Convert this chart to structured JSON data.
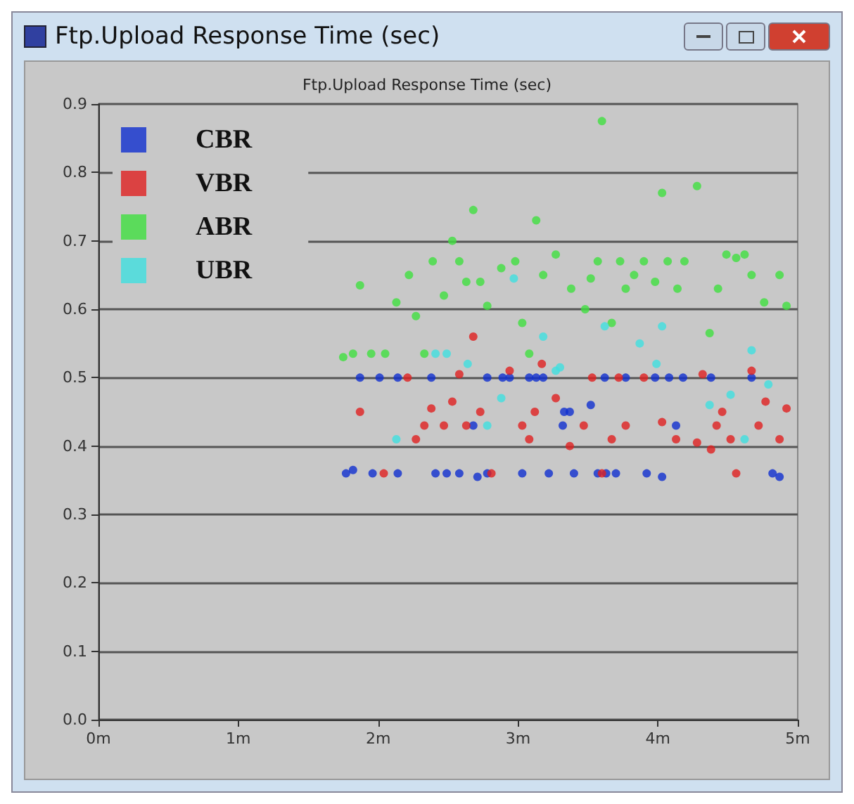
{
  "chart_data": {
    "type": "scatter",
    "title": "Ftp.Upload Response Time (sec)",
    "annotations": [
      "Ftp.Upload Response Time (sec)"
    ],
    "xlim": [
      0,
      5
    ],
    "xticks": [
      {
        "value": 0,
        "label": "0m"
      },
      {
        "value": 1,
        "label": "1m"
      },
      {
        "value": 2,
        "label": "2m"
      },
      {
        "value": 3,
        "label": "3m"
      },
      {
        "value": 4,
        "label": "4m"
      },
      {
        "value": 5,
        "label": "5m"
      }
    ],
    "ylim": [
      0,
      0.9
    ],
    "yticks": [
      {
        "value": 0,
        "label": "0.0"
      },
      0.1,
      0.2,
      0.3,
      0.4,
      0.5,
      0.6,
      0.7,
      0.8,
      0.9
    ],
    "grid": "y",
    "legend": "top left",
    "marker": "circle",
    "series": [
      {
        "name": "CBR",
        "color": "#1030d0",
        "x": [
          1.77,
          1.82,
          1.96,
          2.03,
          2.14,
          2.41,
          2.49,
          2.58,
          2.71,
          2.78,
          3.03,
          3.22,
          3.4,
          3.57,
          3.63,
          3.7,
          3.92,
          4.03,
          4.82,
          4.87,
          1.87,
          2.01,
          2.14,
          2.38,
          2.78,
          2.89,
          2.94,
          3.08,
          3.13,
          3.18,
          3.62,
          3.77,
          3.88,
          3.98,
          4.08,
          4.18,
          4.38,
          4.67,
          3.33,
          3.32,
          2.68,
          3.52,
          3.37,
          4.13
        ],
        "values": [
          0.36,
          0.365,
          0.36,
          null,
          0.36,
          0.36,
          0.36,
          0.36,
          0.355,
          0.36,
          0.36,
          0.36,
          0.36,
          0.36,
          0.36,
          0.36,
          0.36,
          0.355,
          0.36,
          0.355,
          0.5,
          0.5,
          0.5,
          0.5,
          0.5,
          0.5,
          0.5,
          0.5,
          0.5,
          0.5,
          0.5,
          0.5,
          null,
          0.5,
          0.5,
          0.5,
          0.5,
          0.5,
          0.45,
          0.43,
          0.43,
          0.46,
          0.45,
          0.43
        ]
      },
      {
        "name": "VBR",
        "color": "#e02020",
        "x": [
          1.87,
          2.21,
          2.38,
          2.53,
          2.33,
          2.47,
          2.27,
          2.68,
          2.58,
          2.73,
          2.63,
          2.94,
          3.17,
          3.27,
          3.12,
          3.03,
          3.08,
          3.37,
          2.04,
          2.81,
          3.53,
          3.72,
          3.9,
          4.32,
          4.67,
          3.77,
          4.03,
          3.47,
          3.67,
          4.13,
          4.28,
          4.38,
          4.52,
          4.62,
          4.87,
          4.42,
          4.46,
          4.72,
          4.77,
          4.92,
          4.56,
          3.6
        ],
        "values": [
          0.45,
          0.5,
          0.455,
          0.465,
          0.43,
          0.43,
          0.41,
          0.56,
          0.505,
          0.45,
          0.43,
          0.51,
          0.52,
          0.47,
          0.45,
          0.43,
          0.41,
          0.4,
          0.36,
          0.36,
          0.5,
          0.5,
          0.5,
          0.505,
          0.51,
          0.43,
          0.435,
          0.43,
          0.41,
          0.41,
          0.405,
          0.395,
          0.41,
          null,
          0.41,
          0.43,
          0.45,
          0.43,
          0.465,
          0.455,
          0.36,
          0.36
        ]
      },
      {
        "name": "ABR",
        "color": "#40e040",
        "x": [
          1.75,
          1.82,
          1.95,
          2.05,
          2.33,
          1.87,
          2.13,
          2.22,
          2.27,
          2.39,
          2.47,
          2.53,
          2.58,
          2.63,
          2.73,
          2.68,
          2.78,
          2.88,
          2.98,
          3.13,
          3.27,
          3.18,
          3.03,
          3.08,
          3.37,
          3.6,
          4.03,
          4.28,
          3.38,
          3.48,
          3.52,
          3.57,
          3.73,
          3.77,
          3.83,
          3.9,
          3.98,
          4.07,
          4.14,
          4.19,
          4.43,
          4.49,
          4.56,
          4.62,
          4.67,
          4.87,
          4.76,
          4.92,
          3.67,
          4.37
        ],
        "values": [
          0.53,
          0.535,
          0.535,
          0.535,
          0.535,
          0.635,
          0.61,
          0.65,
          0.59,
          0.67,
          0.62,
          0.7,
          0.67,
          0.64,
          0.64,
          0.745,
          0.605,
          0.66,
          0.67,
          0.73,
          0.68,
          0.65,
          0.58,
          0.535,
          null,
          0.875,
          0.77,
          0.78,
          0.63,
          0.6,
          0.645,
          0.67,
          0.67,
          0.63,
          0.65,
          0.67,
          0.64,
          0.67,
          0.63,
          0.67,
          0.63,
          0.68,
          0.675,
          0.68,
          0.65,
          0.65,
          0.61,
          0.605,
          0.58,
          0.565
        ]
      },
      {
        "name": "UBR",
        "color": "#40e0e0",
        "x": [
          2.13,
          2.41,
          2.49,
          2.64,
          2.88,
          2.78,
          2.97,
          3.18,
          3.27,
          3.62,
          4.03,
          3.87,
          3.99,
          4.67,
          4.52,
          4.37,
          4.79,
          3.3,
          4.62
        ],
        "values": [
          0.41,
          0.535,
          0.535,
          0.52,
          0.47,
          0.43,
          0.645,
          0.56,
          0.51,
          0.575,
          0.575,
          0.55,
          0.52,
          0.54,
          0.475,
          0.46,
          0.49,
          0.515,
          0.41
        ]
      }
    ]
  }
}
